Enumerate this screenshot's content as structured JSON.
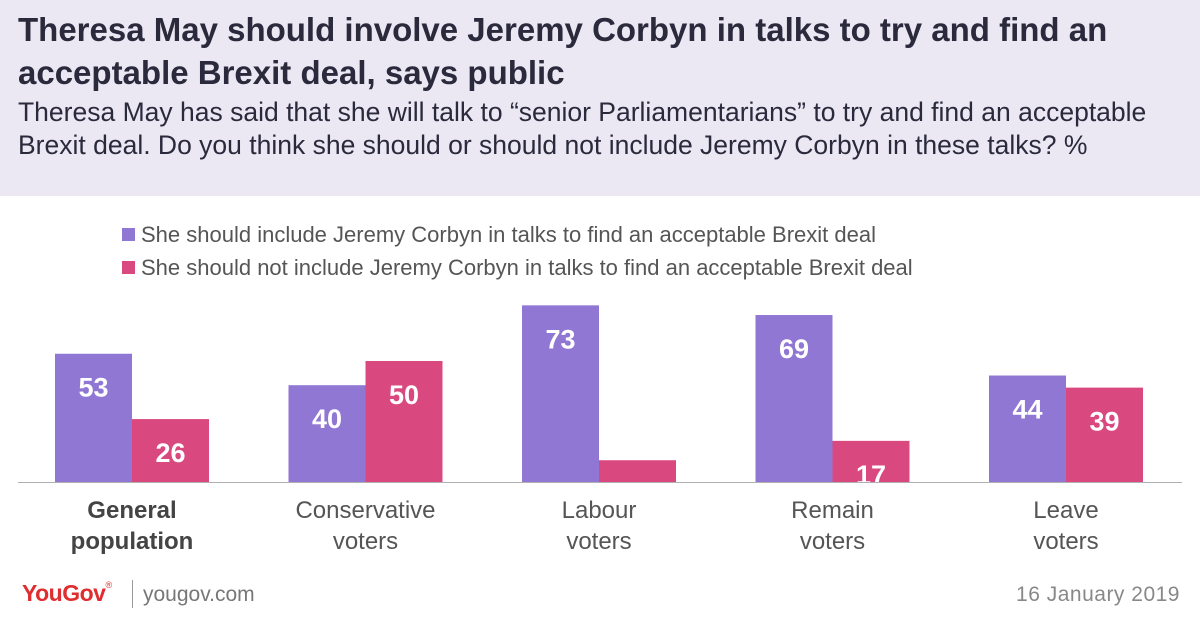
{
  "header": {
    "title": "Theresa May should involve Jeremy Corbyn in talks to try and find an acceptable Brexit deal, says public",
    "subtitle": "Theresa May has said that she will talk to “senior Parliamentarians” to try and find an acceptable Brexit deal. Do you think she should or should not include Jeremy Corbyn in these talks? %"
  },
  "chart_data": {
    "type": "bar",
    "title": "Theresa May should involve Jeremy Corbyn in talks to try and find an acceptable Brexit deal, says public",
    "categories": [
      [
        "General",
        "population"
      ],
      [
        "Conservative",
        "voters"
      ],
      [
        "Labour",
        "voters"
      ],
      [
        "Remain",
        "voters"
      ],
      [
        "Leave",
        "voters"
      ]
    ],
    "bold_category_index": 0,
    "series": [
      {
        "name": "She should include Jeremy Corbyn in talks to find an acceptable Brexit deal",
        "color": "#9177d4",
        "values": [
          53,
          40,
          73,
          69,
          44
        ]
      },
      {
        "name": "She should not include Jeremy Corbyn in talks to find an acceptable Brexit deal",
        "color": "#d9487f",
        "values": [
          26,
          50,
          9,
          17,
          39
        ]
      }
    ],
    "ylim": [
      0,
      100
    ],
    "grid": false,
    "legend_position": "top-left",
    "data_labels": "inside-top"
  },
  "footer": {
    "brand": "YouGov",
    "brand_mark": "®",
    "site": "yougov.com",
    "date": "16 January 2019"
  },
  "colors": {
    "header_background": "#ebe8f4",
    "brand_red": "#e02d2f",
    "text_dark": "#2a2a3c"
  }
}
